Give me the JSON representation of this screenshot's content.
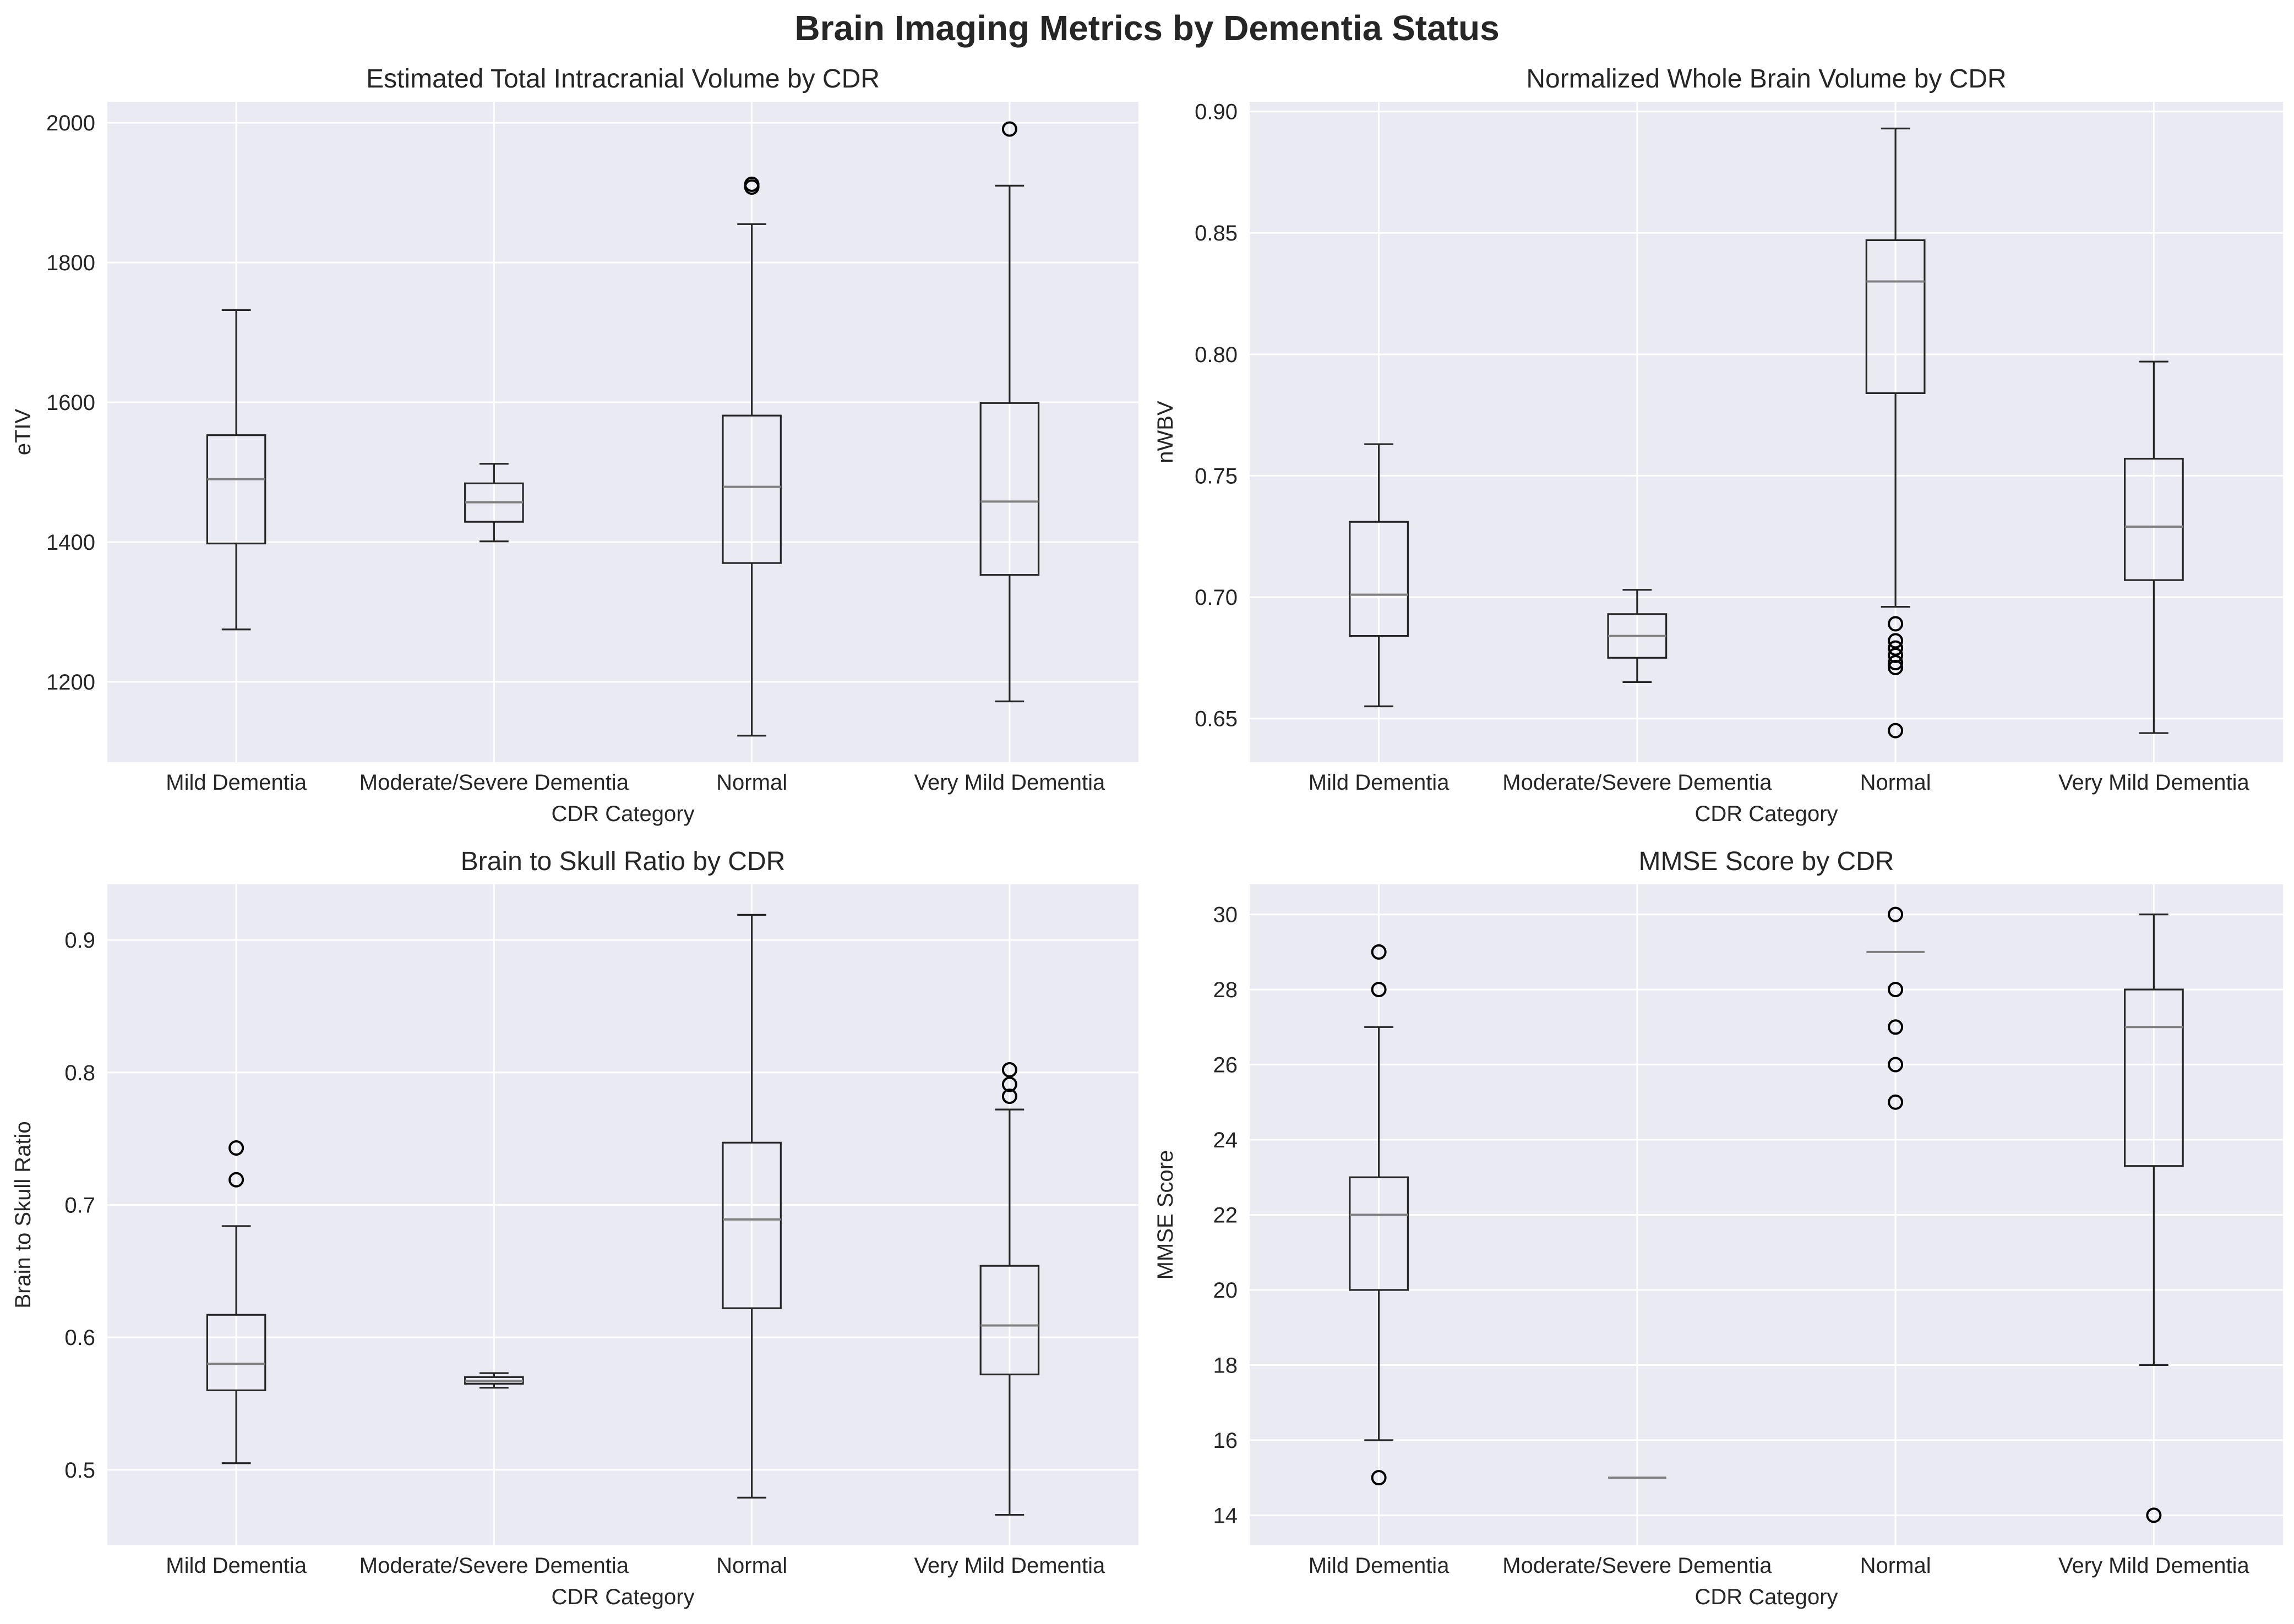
{
  "figure": {
    "title": "Brain Imaging Metrics by Dementia Status",
    "colors": {
      "plot_background": "#eaeaf2",
      "grid": "#ffffff",
      "box": "#262626",
      "median": "#808080",
      "text": "#262626"
    }
  },
  "chart_data": [
    {
      "type": "box",
      "title": "Estimated Total Intracranial Volume by CDR",
      "xlabel": "CDR Category",
      "ylabel": "eTIV",
      "categories": [
        "Mild Dementia",
        "Moderate/Severe Dementia",
        "Normal",
        "Very Mild Dementia"
      ],
      "ylim": [
        1085,
        2030
      ],
      "yticks": [
        1200,
        1400,
        1600,
        1800,
        2000
      ],
      "tick_decimals": 0,
      "grid": true,
      "boxes": [
        {
          "whislo": 1275,
          "q1": 1398,
          "median": 1490,
          "q3": 1553,
          "whishi": 1732,
          "fliers": []
        },
        {
          "whislo": 1401,
          "q1": 1429,
          "median": 1457,
          "q3": 1484,
          "whishi": 1512,
          "fliers": []
        },
        {
          "whislo": 1123,
          "q1": 1370,
          "median": 1479,
          "q3": 1581,
          "whishi": 1855,
          "fliers": [
            1908,
            1912
          ]
        },
        {
          "whislo": 1172,
          "q1": 1353,
          "median": 1458,
          "q3": 1599,
          "whishi": 1910,
          "fliers": [
            1991
          ]
        }
      ]
    },
    {
      "type": "box",
      "title": "Normalized Whole Brain Volume by CDR",
      "xlabel": "CDR Category",
      "ylabel": "nWBV",
      "categories": [
        "Mild Dementia",
        "Moderate/Severe Dementia",
        "Normal",
        "Very Mild Dementia"
      ],
      "ylim": [
        0.632,
        0.904
      ],
      "yticks": [
        0.65,
        0.7,
        0.75,
        0.8,
        0.85,
        0.9
      ],
      "tick_decimals": 2,
      "grid": true,
      "boxes": [
        {
          "whislo": 0.655,
          "q1": 0.684,
          "median": 0.701,
          "q3": 0.731,
          "whishi": 0.763,
          "fliers": []
        },
        {
          "whislo": 0.665,
          "q1": 0.675,
          "median": 0.684,
          "q3": 0.693,
          "whishi": 0.703,
          "fliers": []
        },
        {
          "whislo": 0.696,
          "q1": 0.784,
          "median": 0.83,
          "q3": 0.847,
          "whishi": 0.893,
          "fliers": [
            0.689,
            0.682,
            0.679,
            0.676,
            0.673,
            0.671,
            0.645
          ]
        },
        {
          "whislo": 0.644,
          "q1": 0.707,
          "median": 0.729,
          "q3": 0.757,
          "whishi": 0.797,
          "fliers": []
        }
      ]
    },
    {
      "type": "box",
      "title": "Brain to Skull Ratio by CDR",
      "xlabel": "CDR Category",
      "ylabel": "Brain to Skull Ratio",
      "categories": [
        "Mild Dementia",
        "Moderate/Severe Dementia",
        "Normal",
        "Very Mild Dementia"
      ],
      "ylim": [
        0.443,
        0.942
      ],
      "yticks": [
        0.5,
        0.6,
        0.7,
        0.8,
        0.9
      ],
      "tick_decimals": 1,
      "grid": true,
      "boxes": [
        {
          "whislo": 0.505,
          "q1": 0.56,
          "median": 0.58,
          "q3": 0.617,
          "whishi": 0.684,
          "fliers": [
            0.719,
            0.743
          ]
        },
        {
          "whislo": 0.562,
          "q1": 0.565,
          "median": 0.567,
          "q3": 0.57,
          "whishi": 0.573,
          "fliers": []
        },
        {
          "whislo": 0.479,
          "q1": 0.622,
          "median": 0.689,
          "q3": 0.747,
          "whishi": 0.919,
          "fliers": []
        },
        {
          "whislo": 0.466,
          "q1": 0.572,
          "median": 0.609,
          "q3": 0.654,
          "whishi": 0.772,
          "fliers": [
            0.782,
            0.791,
            0.802
          ]
        }
      ]
    },
    {
      "type": "box",
      "title": "MMSE Score by CDR",
      "xlabel": "CDR Category",
      "ylabel": "MMSE Score",
      "categories": [
        "Mild Dementia",
        "Moderate/Severe Dementia",
        "Normal",
        "Very Mild Dementia"
      ],
      "ylim": [
        13.2,
        30.8
      ],
      "yticks": [
        14,
        16,
        18,
        20,
        22,
        24,
        26,
        28,
        30
      ],
      "tick_decimals": 0,
      "grid": true,
      "boxes": [
        {
          "whislo": 16,
          "q1": 20,
          "median": 22,
          "q3": 23,
          "whishi": 27,
          "fliers": [
            15,
            28,
            29
          ]
        },
        {
          "whislo": 15,
          "q1": 15,
          "median": 15,
          "q3": 15,
          "whishi": 15,
          "fliers": []
        },
        {
          "whislo": 29,
          "q1": 29,
          "median": 29,
          "q3": 29,
          "whishi": 29,
          "fliers": [
            25,
            26,
            27,
            28,
            30
          ]
        },
        {
          "whislo": 18,
          "q1": 23.3,
          "median": 27,
          "q3": 28,
          "whishi": 30,
          "fliers": [
            14
          ]
        }
      ]
    }
  ]
}
